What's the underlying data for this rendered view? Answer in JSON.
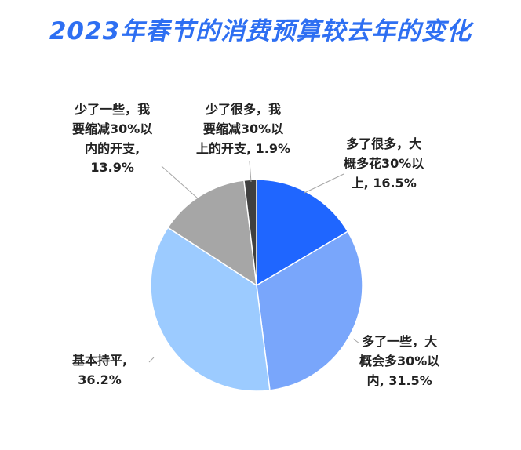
{
  "chart_data": {
    "type": "pie",
    "title": "2023年春节的消费预算较去年的变化",
    "categories": [
      "多了很多，大概多花30%以上",
      "多了一些，大概会多30%以内",
      "基本持平",
      "少了一些，我要缩减30%以内的开支",
      "少了很多，我要缩减30%以上的开支"
    ],
    "values": [
      16.5,
      31.5,
      36.2,
      13.9,
      1.9
    ],
    "colors": [
      "#1f66ff",
      "#79a6fb",
      "#9ccbff",
      "#a6a6a6",
      "#404040"
    ],
    "data_labels": [
      "多了很多，大\n概多花30%以\n上, 16.5%",
      "多了一些，大\n概会多30%以\n内, 31.5%",
      "基本持平,\n36.2%",
      "少了一些，我\n要缩减30%以\n内的开支,\n13.9%",
      "少了很多，我\n要缩减30%以\n上的开支, 1.9%"
    ]
  }
}
